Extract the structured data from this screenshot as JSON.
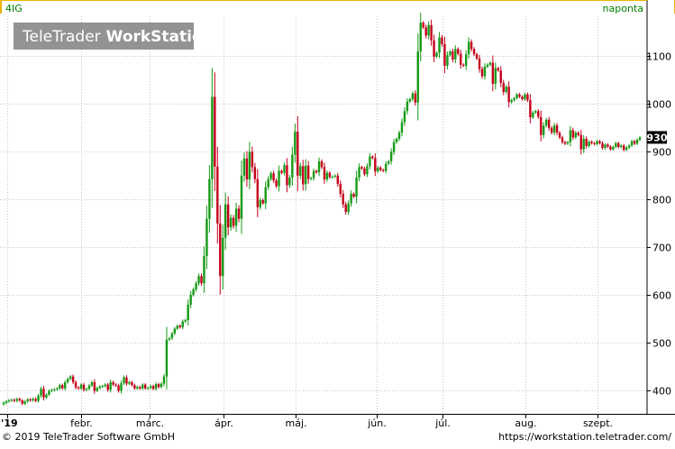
{
  "header": {
    "symbol": "4IG",
    "interval": "naponta",
    "watermark_light": "TeleTrader",
    "watermark_bold": "WorkStation"
  },
  "footer": {
    "copyright": "© 2019 TeleTrader Software GmbH",
    "url": "https://workstation.teletrader.com/"
  },
  "colors": {
    "up": "#169a16",
    "down": "#c4001a",
    "grid": "#c8c8c8",
    "last_price_bg": "#000000",
    "interval_text": "#008000"
  },
  "chart_data": {
    "type": "candlestick",
    "ylim": [
      355,
      1190
    ],
    "yticks": [
      400,
      500,
      600,
      700,
      800,
      900,
      1000,
      1100
    ],
    "month_labels": [
      "'19",
      "febr.",
      "márc.",
      "ápr.",
      "máj.",
      "jún.",
      "júl.",
      "aug.",
      "szept."
    ],
    "last_price_label": "930",
    "last_price": 930,
    "grid": true,
    "series_closes": [
      375,
      378,
      380,
      381,
      379,
      383,
      380,
      373,
      378,
      382,
      380,
      383,
      379,
      390,
      404,
      386,
      392,
      400,
      402,
      403,
      405,
      412,
      405,
      418,
      425,
      430,
      418,
      407,
      405,
      413,
      402,
      404,
      411,
      418,
      400,
      406,
      409,
      410,
      413,
      402,
      418,
      413,
      411,
      400,
      416,
      428,
      415,
      418,
      412,
      405,
      408,
      405,
      413,
      405,
      406,
      410,
      404,
      414,
      408,
      415,
      430,
      507,
      510,
      520,
      530,
      536,
      533,
      545,
      548,
      580,
      601,
      612,
      625,
      640,
      625,
      682,
      760,
      843,
      1015,
      869,
      750,
      640,
      720,
      790,
      742,
      762,
      745,
      781,
      760,
      850,
      886,
      842,
      900,
      868,
      843,
      784,
      799,
      792,
      826,
      843,
      855,
      840,
      828,
      860,
      856,
      872,
      830,
      846,
      894,
      942,
      850,
      870,
      832,
      871,
      843,
      845,
      860,
      857,
      880,
      868,
      842,
      856,
      847,
      848,
      850,
      833,
      812,
      790,
      774,
      792,
      812,
      806,
      846,
      868,
      865,
      853,
      870,
      890,
      887,
      859,
      867,
      862,
      860,
      875,
      880,
      900,
      920,
      927,
      940,
      962,
      985,
      1005,
      1010,
      1022,
      1003,
      1110,
      1170,
      1160,
      1143,
      1165,
      1133,
      1099,
      1107,
      1139,
      1125,
      1080,
      1102,
      1110,
      1093,
      1115,
      1105,
      1082,
      1080,
      1104,
      1130,
      1115,
      1104,
      1095,
      1073,
      1058,
      1078,
      1082,
      1086,
      1042,
      1075,
      1070,
      1044,
      1025,
      1036,
      1004,
      1008,
      1012,
      1020,
      1015,
      1010,
      1020,
      1008,
      972,
      982,
      985,
      973,
      935,
      955,
      967,
      950,
      940,
      955,
      940,
      930,
      920,
      917,
      920,
      945,
      930,
      940,
      935,
      905,
      927,
      912,
      921,
      918,
      916,
      922,
      918,
      908,
      915,
      911,
      905,
      910,
      918,
      910,
      913,
      904,
      909,
      913,
      922,
      917,
      925,
      930
    ]
  }
}
